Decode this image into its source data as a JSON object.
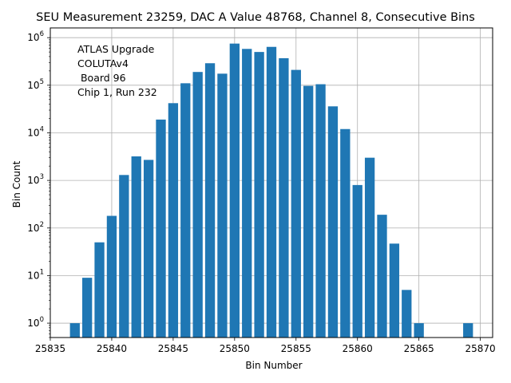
{
  "chart_data": {
    "type": "bar",
    "title": "SEU Measurement 23259, DAC A Value 48768, Channel 8, Consecutive Bins",
    "xlabel": "Bin Number",
    "ylabel": "Bin Count",
    "xlim": [
      25835,
      25871
    ],
    "ylim": [
      0.5,
      1600000
    ],
    "yscale": "log",
    "grid": true,
    "color": "#1f77b4",
    "x_ticks": [
      25835,
      25840,
      25845,
      25850,
      25855,
      25860,
      25865,
      25870
    ],
    "y_ticks": [
      {
        "value": 1,
        "base": "10",
        "exp": "0"
      },
      {
        "value": 10,
        "base": "10",
        "exp": "1"
      },
      {
        "value": 100,
        "base": "10",
        "exp": "2"
      },
      {
        "value": 1000,
        "base": "10",
        "exp": "3"
      },
      {
        "value": 10000,
        "base": "10",
        "exp": "4"
      },
      {
        "value": 100000,
        "base": "10",
        "exp": "5"
      },
      {
        "value": 1000000,
        "base": "10",
        "exp": "6"
      }
    ],
    "x": [
      25837,
      25838,
      25839,
      25840,
      25841,
      25842,
      25843,
      25844,
      25845,
      25846,
      25847,
      25848,
      25849,
      25850,
      25851,
      25852,
      25853,
      25854,
      25855,
      25856,
      25857,
      25858,
      25859,
      25860,
      25861,
      25862,
      25863,
      25864,
      25865,
      25869
    ],
    "values": [
      1,
      9,
      50,
      180,
      1300,
      3200,
      2700,
      19000,
      42000,
      110000,
      190000,
      290000,
      175000,
      750000,
      580000,
      500000,
      640000,
      370000,
      210000,
      97000,
      105000,
      36000,
      12000,
      800,
      3000,
      190,
      47,
      5,
      1,
      1
    ],
    "annotation": [
      "ATLAS Upgrade",
      "COLUTAv4",
      " Board 96",
      "Chip 1, Run 232"
    ]
  }
}
